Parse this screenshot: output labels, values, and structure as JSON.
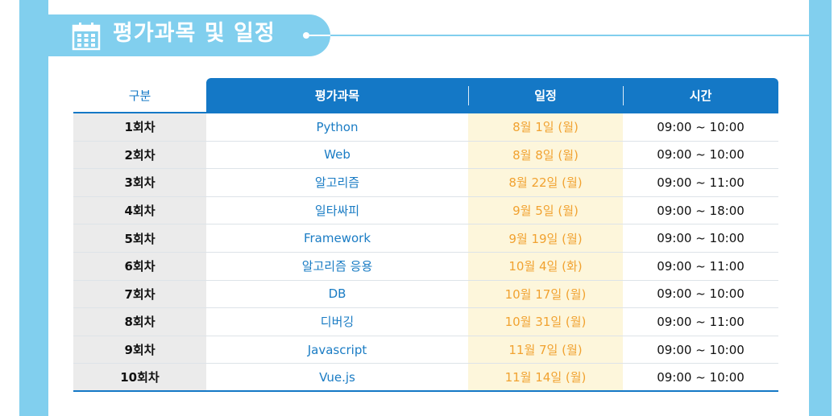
{
  "section": {
    "title": "평가과목 및 일정",
    "icon": "calendar-icon",
    "accent_color": "#81cfee"
  },
  "table": {
    "header_color": "#1478c6",
    "columns": [
      "구분",
      "평가과목",
      "일정",
      "시간"
    ],
    "rows": [
      {
        "round": "1회차",
        "subject": "Python",
        "date": "8월 1일 (월)",
        "time": "09:00 ~ 10:00"
      },
      {
        "round": "2회차",
        "subject": "Web",
        "date": "8월 8일 (월)",
        "time": "09:00 ~ 10:00"
      },
      {
        "round": "3회차",
        "subject": "알고리즘",
        "date": "8월 22일 (월)",
        "time": "09:00 ~ 11:00"
      },
      {
        "round": "4회차",
        "subject": "일타싸피",
        "date": "9월 5일 (월)",
        "time": "09:00 ~ 18:00"
      },
      {
        "round": "5회차",
        "subject": "Framework",
        "date": "9월 19일 (월)",
        "time": "09:00 ~ 10:00"
      },
      {
        "round": "6회차",
        "subject": "알고리즘 응용",
        "date": "10월 4일 (화)",
        "time": "09:00 ~ 11:00"
      },
      {
        "round": "7회차",
        "subject": "DB",
        "date": "10월 17일 (월)",
        "time": "09:00 ~ 10:00"
      },
      {
        "round": "8회차",
        "subject": "디버깅",
        "date": "10월 31일 (월)",
        "time": "09:00 ~ 11:00"
      },
      {
        "round": "9회차",
        "subject": "Javascript",
        "date": "11월 7일 (월)",
        "time": "09:00 ~ 10:00"
      },
      {
        "round": "10회차",
        "subject": "Vue.js",
        "date": "11월 14일 (월)",
        "time": "09:00 ~ 10:00"
      }
    ]
  }
}
